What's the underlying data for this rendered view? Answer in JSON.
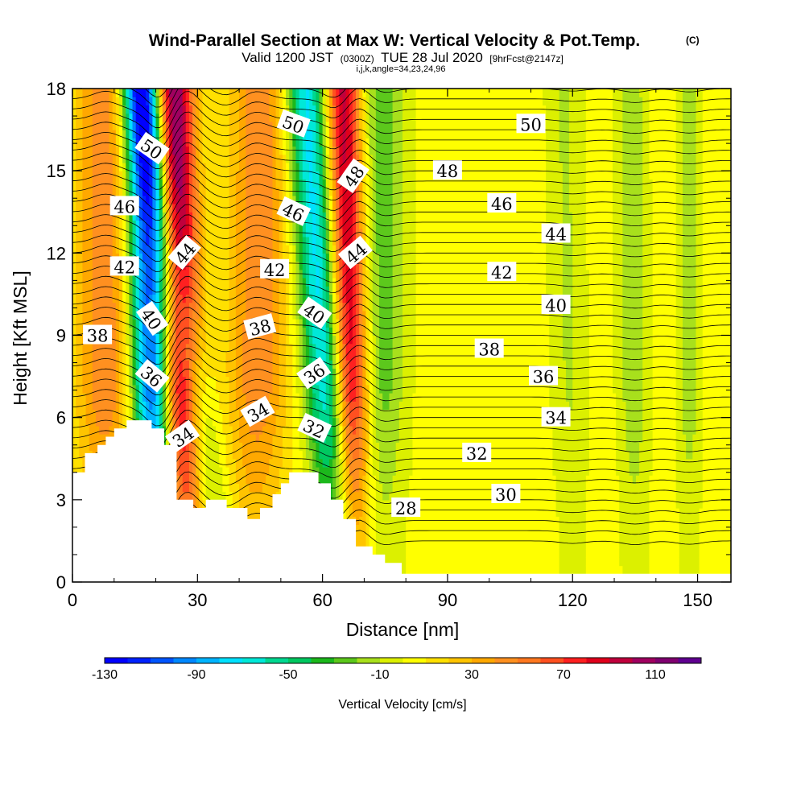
{
  "chart_data": {
    "type": "heatmap",
    "title": "Wind-Parallel Section at Max W: Vertical Velocity & Pot.Temp.",
    "title_mark": "(C)",
    "subtitle": {
      "valid_prefix": "Valid 1200 JST",
      "utc": "(0300Z)",
      "date": "TUE 28 Jul 2020",
      "forecast": "[9hrFcst@2147z]"
    },
    "indices_line": "i,j,k,angle=34,23,24,96",
    "xlabel": "Distance [nm]",
    "ylabel": "Height [Kft MSL]",
    "xlim": [
      0,
      158
    ],
    "ylim": [
      0,
      18
    ],
    "x_ticks": [
      "0",
      "30",
      "60",
      "90",
      "120",
      "150"
    ],
    "y_ticks": [
      "0",
      "3",
      "6",
      "9",
      "12",
      "15",
      "18"
    ],
    "colorbar": {
      "label": "Vertical Velocity [cm/s]",
      "tick_labels": [
        "-130",
        "-90",
        "-50",
        "-10",
        "30",
        "70",
        "110"
      ],
      "levels": [
        -130,
        -120,
        -110,
        -100,
        -90,
        -80,
        -70,
        -60,
        -50,
        -40,
        -30,
        -20,
        -10,
        0,
        10,
        20,
        30,
        40,
        50,
        60,
        70,
        80,
        90,
        100,
        110,
        120
      ],
      "colors": [
        "#0000ff",
        "#0022ff",
        "#0055ff",
        "#0088ff",
        "#00b4ff",
        "#00e1ff",
        "#00e8d8",
        "#00d890",
        "#00c860",
        "#1cb81c",
        "#5cc81c",
        "#a8e01c",
        "#dcf000",
        "#ffff00",
        "#ffe000",
        "#ffc400",
        "#ffa800",
        "#ff9020",
        "#ff7820",
        "#ff5020",
        "#ff2020",
        "#e0001c",
        "#c0003c",
        "#a00060",
        "#800070",
        "#600090"
      ]
    },
    "terrain_kft": [
      [
        0,
        4.0
      ],
      [
        3,
        4.0
      ],
      [
        3,
        4.7
      ],
      [
        6,
        4.7
      ],
      [
        6,
        5.0
      ],
      [
        8,
        5.0
      ],
      [
        8,
        5.3
      ],
      [
        10,
        5.3
      ],
      [
        10,
        5.6
      ],
      [
        13,
        5.6
      ],
      [
        13,
        5.9
      ],
      [
        19,
        5.9
      ],
      [
        19,
        5.6
      ],
      [
        22,
        5.6
      ],
      [
        22,
        5.0
      ],
      [
        25,
        5.0
      ],
      [
        25,
        3.0
      ],
      [
        29,
        3.0
      ],
      [
        29,
        2.7
      ],
      [
        32,
        2.7
      ],
      [
        32,
        3.0
      ],
      [
        37,
        3.0
      ],
      [
        37,
        2.7
      ],
      [
        42,
        2.7
      ],
      [
        42,
        2.3
      ],
      [
        45,
        2.3
      ],
      [
        45,
        2.7
      ],
      [
        48,
        2.7
      ],
      [
        48,
        3.2
      ],
      [
        50,
        3.2
      ],
      [
        50,
        3.6
      ],
      [
        52,
        3.6
      ],
      [
        52,
        4.0
      ],
      [
        59,
        4.0
      ],
      [
        59,
        3.6
      ],
      [
        62,
        3.6
      ],
      [
        62,
        3.0
      ],
      [
        65,
        3.0
      ],
      [
        65,
        2.3
      ],
      [
        68,
        2.3
      ],
      [
        68,
        1.3
      ],
      [
        72,
        1.3
      ],
      [
        72,
        1.0
      ],
      [
        75,
        1.0
      ],
      [
        75,
        0.7
      ],
      [
        79,
        0.7
      ],
      [
        79,
        0.3
      ],
      [
        85,
        0.3
      ],
      [
        85,
        0.3
      ],
      [
        158,
        0.3
      ]
    ],
    "velocity_features": [
      {
        "type": "updraft",
        "x_nm": 27,
        "x_top_nm": 24,
        "peak_cm_s": 120,
        "width_nm": 3.5
      },
      {
        "type": "downdraft",
        "x_nm": 21,
        "x_top_nm": 17,
        "peak_cm_s": -125,
        "width_nm": 3.5
      },
      {
        "type": "downdraft",
        "x_nm": 37,
        "x_top_nm": 16,
        "peak_cm_s": -40,
        "width_nm": 3
      },
      {
        "type": "updraft",
        "x_nm": 44,
        "x_top_nm": 45,
        "peak_cm_s": 45,
        "width_nm": 5
      },
      {
        "type": "downdraft",
        "x_nm": 64,
        "x_top_nm": 56,
        "peak_cm_s": -80,
        "width_nm": 3.5
      },
      {
        "type": "updraft",
        "x_nm": 68,
        "x_top_nm": 65,
        "peak_cm_s": 95,
        "width_nm": 3
      },
      {
        "type": "updraft",
        "x_nm": 8,
        "x_top_nm": 8,
        "peak_cm_s": 45,
        "width_nm": 5
      },
      {
        "type": "downdraft",
        "x_nm": 74,
        "x_top_nm": 74,
        "peak_cm_s": -30,
        "width_nm": 4
      },
      {
        "type": "downdraft",
        "x_nm": 120,
        "x_top_nm": 118,
        "peak_cm_s": -15,
        "width_nm": 3
      },
      {
        "type": "downdraft",
        "x_nm": 135,
        "x_top_nm": 134,
        "peak_cm_s": -22,
        "width_nm": 2.5
      },
      {
        "type": "downdraft",
        "x_nm": 148,
        "x_top_nm": 148,
        "peak_cm_s": -20,
        "width_nm": 2
      }
    ],
    "theta_levels_c": [
      28,
      30,
      32,
      34,
      36,
      38,
      40,
      42,
      44,
      46,
      48,
      50
    ],
    "theta_labels": [
      {
        "text": "50",
        "x_nm": 19,
        "y_kft": 15.8,
        "angle": 35
      },
      {
        "text": "46",
        "x_nm": 12.5,
        "y_kft": 13.7,
        "angle": 0
      },
      {
        "text": "42",
        "x_nm": 12.5,
        "y_kft": 11.5,
        "angle": 0
      },
      {
        "text": "38",
        "x_nm": 6,
        "y_kft": 9.0,
        "angle": 0
      },
      {
        "text": "40",
        "x_nm": 19,
        "y_kft": 9.6,
        "angle": 55
      },
      {
        "text": "36",
        "x_nm": 19,
        "y_kft": 7.5,
        "angle": 40
      },
      {
        "text": "44",
        "x_nm": 27,
        "y_kft": 12.0,
        "angle": -50
      },
      {
        "text": "34",
        "x_nm": 26.5,
        "y_kft": 5.3,
        "angle": -35
      },
      {
        "text": "50",
        "x_nm": 53,
        "y_kft": 16.7,
        "angle": 20
      },
      {
        "text": "46",
        "x_nm": 53,
        "y_kft": 13.5,
        "angle": 25
      },
      {
        "text": "42",
        "x_nm": 48.5,
        "y_kft": 11.4,
        "angle": 0
      },
      {
        "text": "38",
        "x_nm": 45,
        "y_kft": 9.3,
        "angle": -15
      },
      {
        "text": "34",
        "x_nm": 44.5,
        "y_kft": 6.2,
        "angle": -30
      },
      {
        "text": "40",
        "x_nm": 58,
        "y_kft": 9.8,
        "angle": 35
      },
      {
        "text": "36",
        "x_nm": 58,
        "y_kft": 7.6,
        "angle": -35
      },
      {
        "text": "32",
        "x_nm": 58,
        "y_kft": 5.6,
        "angle": 25
      },
      {
        "text": "48",
        "x_nm": 67.5,
        "y_kft": 14.8,
        "angle": -55
      },
      {
        "text": "44",
        "x_nm": 68,
        "y_kft": 12.0,
        "angle": -40
      },
      {
        "text": "50",
        "x_nm": 110,
        "y_kft": 16.7,
        "angle": 0
      },
      {
        "text": "48",
        "x_nm": 90,
        "y_kft": 15.0,
        "angle": 0
      },
      {
        "text": "46",
        "x_nm": 103,
        "y_kft": 13.8,
        "angle": 0
      },
      {
        "text": "44",
        "x_nm": 116,
        "y_kft": 12.7,
        "angle": 0
      },
      {
        "text": "42",
        "x_nm": 103,
        "y_kft": 11.3,
        "angle": 0
      },
      {
        "text": "40",
        "x_nm": 116,
        "y_kft": 10.1,
        "angle": 0
      },
      {
        "text": "38",
        "x_nm": 100,
        "y_kft": 8.5,
        "angle": 0
      },
      {
        "text": "36",
        "x_nm": 113,
        "y_kft": 7.5,
        "angle": 0
      },
      {
        "text": "34",
        "x_nm": 116,
        "y_kft": 6.0,
        "angle": 0
      },
      {
        "text": "32",
        "x_nm": 97,
        "y_kft": 4.7,
        "angle": 0
      },
      {
        "text": "30",
        "x_nm": 104,
        "y_kft": 3.2,
        "angle": 0
      },
      {
        "text": "28",
        "x_nm": 80,
        "y_kft": 2.7,
        "angle": 0
      }
    ]
  }
}
